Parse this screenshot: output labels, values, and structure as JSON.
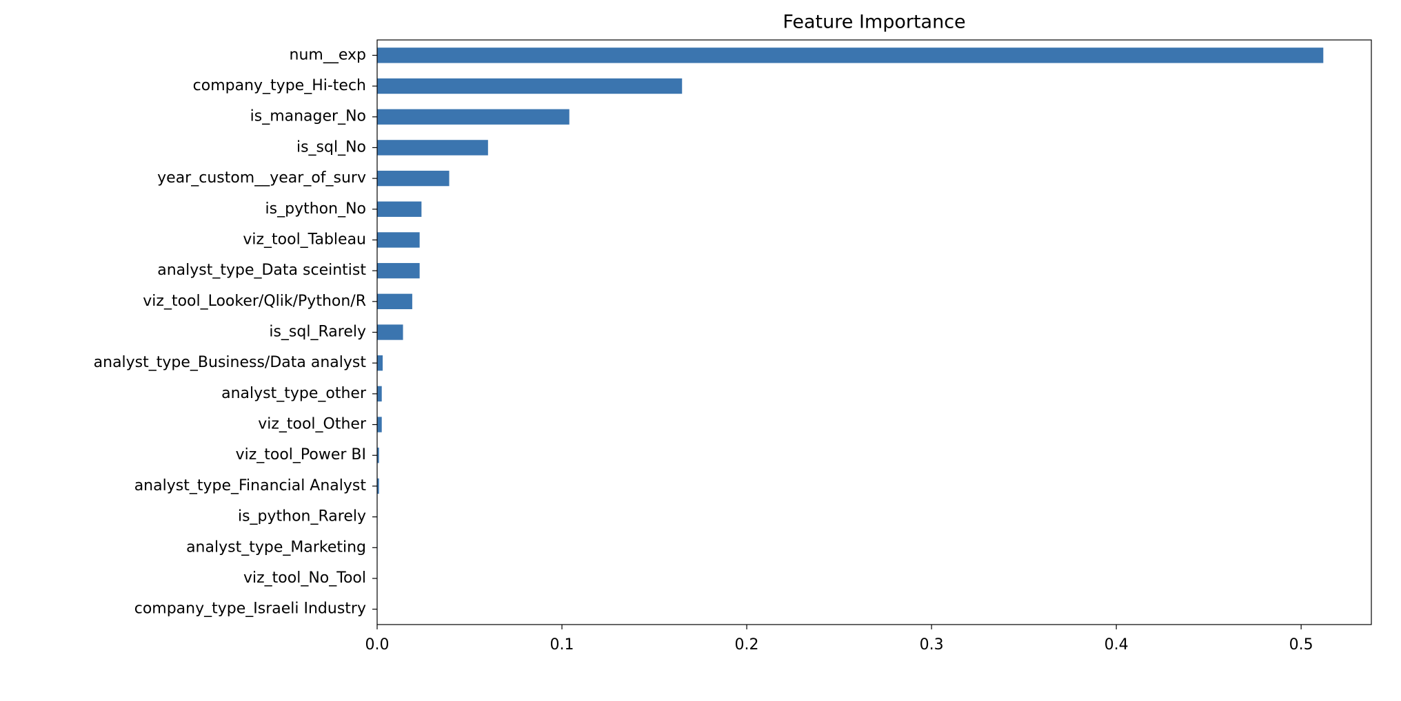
{
  "chart_data": {
    "type": "barh",
    "title": "Feature Importance",
    "categories": [
      "num__exp",
      "company_type_Hi-tech",
      "is_manager_No",
      "is_sql_No",
      "year_custom__year_of_surv",
      "is_python_No",
      "viz_tool_Tableau",
      "analyst_type_Data sceintist",
      "viz_tool_Looker/Qlik/Python/R",
      "is_sql_Rarely",
      "analyst_type_Business/Data analyst",
      "analyst_type_other",
      "viz_tool_Other",
      "viz_tool_Power BI",
      "analyst_type_Financial Analyst",
      "is_python_Rarely",
      "analyst_type_Marketing",
      "viz_tool_No_Tool",
      "company_type_Israeli Industry"
    ],
    "values": [
      0.512,
      0.165,
      0.104,
      0.06,
      0.039,
      0.024,
      0.023,
      0.023,
      0.019,
      0.014,
      0.003,
      0.0025,
      0.0025,
      0.001,
      0.001,
      0.0002,
      0.0002,
      0.0001,
      0.0001
    ],
    "color": "#3b75af",
    "xlim": [
      0,
      0.538
    ],
    "xticks": [
      {
        "value": 0,
        "label": "0.0"
      },
      0.1,
      0.2,
      0.3,
      0.4,
      0.5
    ]
  }
}
